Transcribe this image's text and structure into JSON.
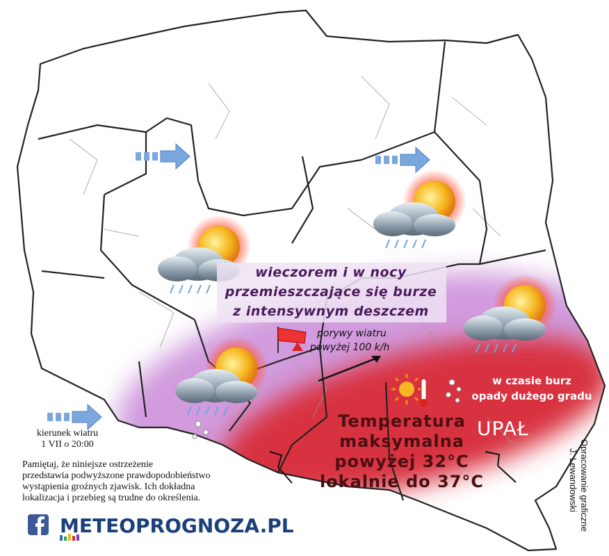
{
  "storm_box": {
    "lines": [
      "wieczorem i w nocy",
      "przemieszczające się burze",
      "z intensywnym deszczem"
    ]
  },
  "wind_gusts": {
    "lines": [
      "porywy wiatru",
      "powyżej 100 k/h"
    ]
  },
  "hail": {
    "lines": [
      "w czasie burz",
      "opady dużego gradu"
    ]
  },
  "temperature": {
    "lines": [
      "Temperatura",
      "maksymalna",
      "powyżej 32°C",
      "lokalnie do 37°C"
    ]
  },
  "heat_label": "UPAŁ",
  "wind_legend": {
    "lines": [
      "kierunek wiatru",
      "1 VII o 20:00"
    ]
  },
  "disclaimer": {
    "lines": [
      "Pamiętaj, że niniejsze ostrzeżenie",
      "przedstawia podwyższone prawdopodobieństwo",
      "wystąpienia groźnych zjawisk. Ich dokładna",
      "lokalizacja i przebieg są trudne do określenia."
    ]
  },
  "credit": {
    "lines": [
      "Opracowanie graficzne",
      "J. Lewandowski"
    ]
  },
  "logo": "METEOPROGNOZA.PL"
}
